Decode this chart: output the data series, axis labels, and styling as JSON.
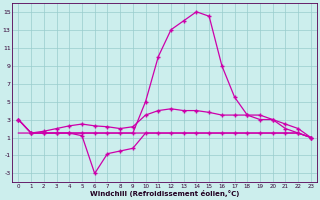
{
  "xlabel": "Windchill (Refroidissement éolien,°C)",
  "background_color": "#cceeed",
  "grid_color": "#99cccc",
  "line_color": "#cc00aa",
  "x_hours": [
    0,
    1,
    2,
    3,
    4,
    5,
    6,
    7,
    8,
    9,
    10,
    11,
    12,
    13,
    14,
    15,
    16,
    17,
    18,
    19,
    20,
    21,
    22,
    23
  ],
  "y_main": [
    3,
    1.5,
    1.5,
    1.5,
    1.5,
    1.5,
    1.5,
    1.5,
    1.5,
    1.5,
    5.0,
    10.0,
    13.0,
    14.0,
    15.0,
    14.5,
    9.0,
    5.5,
    3.5,
    3.0,
    3.0,
    2.0,
    1.5,
    1.0
  ],
  "y_upper": [
    3,
    1.5,
    1.7,
    2.0,
    2.3,
    2.5,
    2.3,
    2.2,
    2.0,
    2.2,
    3.5,
    4.0,
    4.2,
    4.0,
    4.0,
    3.8,
    3.5,
    3.5,
    3.5,
    3.5,
    3.0,
    2.5,
    2.0,
    1.0
  ],
  "y_flat": [
    1.5,
    1.5,
    1.5,
    1.5,
    1.5,
    1.5,
    1.5,
    1.5,
    1.5,
    1.5,
    1.5,
    1.5,
    1.5,
    1.5,
    1.5,
    1.5,
    1.5,
    1.5,
    1.5,
    1.5,
    1.5,
    1.5,
    1.5,
    1.0
  ],
  "y_low": [
    3,
    1.5,
    1.5,
    1.5,
    1.5,
    1.2,
    -3.0,
    -0.8,
    -0.5,
    -0.2,
    1.5,
    1.5,
    1.5,
    1.5,
    1.5,
    1.5,
    1.5,
    1.5,
    1.5,
    1.5,
    1.5,
    1.5,
    1.5,
    1.0
  ],
  "ylim": [
    -4,
    16
  ],
  "yticks": [
    -3,
    -1,
    1,
    3,
    5,
    7,
    9,
    11,
    13,
    15
  ],
  "xlim": [
    -0.5,
    23.5
  ]
}
